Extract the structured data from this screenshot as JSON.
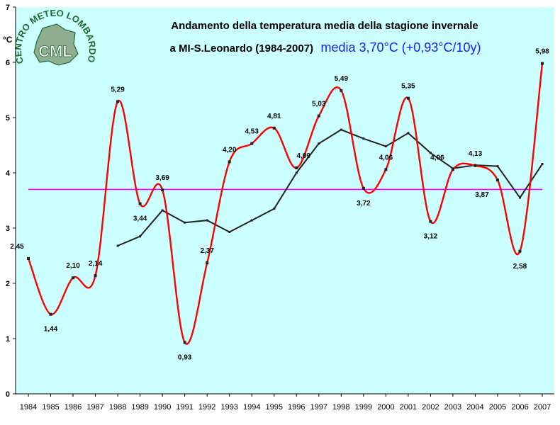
{
  "chart_data": {
    "type": "line",
    "title_line1": "Andamento della temperatura media della stagione invernale",
    "title_line2": "a MI-S.Leonardo (1984-2007)",
    "title_accent": "media 3,70°C (+0,93°C/10y)",
    "ylabel": "°C",
    "ylim": [
      0,
      7
    ],
    "yticks": [
      0,
      1,
      2,
      3,
      4,
      5,
      6,
      7
    ],
    "categories": [
      "1984",
      "1985",
      "1986",
      "1987",
      "1988",
      "1989",
      "1990",
      "1991",
      "1992",
      "1993",
      "1994",
      "1995",
      "1996",
      "1997",
      "1998",
      "1999",
      "2000",
      "2001",
      "2002",
      "2003",
      "2004",
      "2005",
      "2006",
      "2007"
    ],
    "series": [
      {
        "values": [
          2.45,
          1.44,
          2.1,
          2.14,
          5.29,
          3.44,
          3.69,
          0.93,
          2.37,
          4.2,
          4.53,
          4.81,
          4.09,
          5.03,
          5.49,
          3.72,
          4.06,
          5.35,
          3.12,
          4.06,
          4.13,
          3.87,
          2.58,
          5.98
        ],
        "labels": [
          "2,45",
          "1,44",
          "2,10",
          "2,14",
          "5,29",
          "3,44",
          "3,69",
          "0,93",
          "2,37",
          "4,20",
          "4,53",
          "4,81",
          "4,09",
          "5,03",
          "5,49",
          "3,72",
          "4,06",
          "5,35",
          "3,12",
          "4,06",
          "4,13",
          "3,87",
          "2,58",
          "5,98"
        ],
        "color": "#ff0000"
      },
      {
        "values": [
          null,
          null,
          null,
          null,
          2.68,
          2.85,
          3.32,
          3.1,
          3.14,
          2.93,
          3.14,
          3.35,
          4.0,
          4.53,
          4.78,
          4.62,
          4.48,
          4.72,
          4.36,
          4.08,
          4.14,
          4.12,
          3.55,
          4.16
        ],
        "color": "#222222"
      },
      {
        "values": [
          3.7,
          3.7,
          3.7,
          3.7,
          3.7,
          3.7,
          3.7,
          3.7,
          3.7,
          3.7,
          3.7,
          3.7,
          3.7,
          3.7,
          3.7,
          3.7,
          3.7,
          3.7,
          3.7,
          3.7,
          3.7,
          3.7,
          3.7,
          3.7
        ],
        "color": "#ff00ff"
      }
    ],
    "grid": false,
    "plot_background": "#ccffff"
  },
  "logo": {
    "arc_text": "CENTRO METEO LOMBARDO",
    "center_text": "CML",
    "color": "#1e6b2e"
  }
}
